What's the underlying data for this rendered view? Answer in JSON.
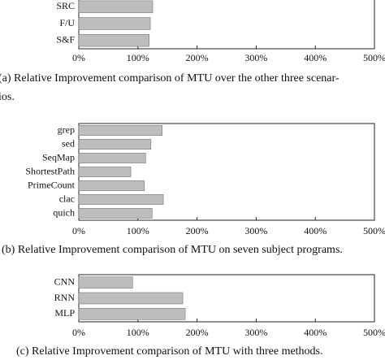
{
  "chart_data": [
    {
      "type": "barh",
      "caption": [
        "(a) Relative Improvement comparison of MTU over the other three scenar-",
        "ios."
      ],
      "categories": [
        "SRC",
        "F/U",
        "S&F"
      ],
      "values": [
        125,
        121,
        119
      ],
      "color": "#bdbdbd",
      "xlim": [
        0,
        500
      ],
      "xticks": [
        {
          "value": 0,
          "label": "0%"
        },
        {
          "value": 100,
          "label": "100%"
        },
        {
          "value": 200,
          "label": "200%"
        },
        {
          "value": 300,
          "label": "300%"
        },
        {
          "value": 400,
          "label": "400%"
        },
        {
          "value": 500,
          "label": "500%"
        }
      ]
    },
    {
      "type": "barh",
      "caption": [
        "(b) Relative Improvement comparison of MTU on seven subject programs."
      ],
      "categories": [
        "grep",
        "sed",
        "SeqMap",
        "ShortestPath",
        "PrimeCount",
        "clac",
        "quich"
      ],
      "values": [
        141,
        122,
        113,
        88,
        111,
        143,
        124
      ],
      "color": "#bdbdbd",
      "xlim": [
        0,
        500
      ],
      "xticks": [
        {
          "value": 0,
          "label": "0%"
        },
        {
          "value": 100,
          "label": "100%"
        },
        {
          "value": 200,
          "label": "200%"
        },
        {
          "value": 300,
          "label": "300%"
        },
        {
          "value": 400,
          "label": "400%"
        },
        {
          "value": 500,
          "label": "500%"
        }
      ]
    },
    {
      "type": "barh",
      "caption": [
        "(c) Relative Improvement comparison of MTU with three methods."
      ],
      "categories": [
        "CNN",
        "RNN",
        "MLP"
      ],
      "values": [
        91,
        176,
        180
      ],
      "color": "#bdbdbd",
      "xlim": [
        0,
        500
      ],
      "xticks": [
        {
          "value": 0,
          "label": "0%"
        },
        {
          "value": 100,
          "label": "100%"
        },
        {
          "value": 200,
          "label": "200%"
        },
        {
          "value": 300,
          "label": "300%"
        },
        {
          "value": 400,
          "label": "400%"
        },
        {
          "value": 500,
          "label": "500%"
        }
      ]
    }
  ]
}
